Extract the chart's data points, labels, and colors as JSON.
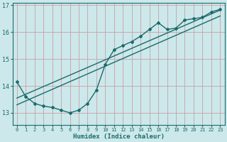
{
  "xlabel": "Humidex (Indice chaleur)",
  "ylabel": "",
  "bg_color": "#cce8ea",
  "grid_color": "#c8a0a8",
  "line_color": "#1a6b6b",
  "xlim": [
    -0.5,
    23.5
  ],
  "ylim": [
    12.55,
    17.1
  ],
  "yticks": [
    13,
    14,
    15,
    16,
    17
  ],
  "xticks": [
    0,
    1,
    2,
    3,
    4,
    5,
    6,
    7,
    8,
    9,
    10,
    11,
    12,
    13,
    14,
    15,
    16,
    17,
    18,
    19,
    20,
    21,
    22,
    23
  ],
  "data_x": [
    0,
    1,
    2,
    3,
    4,
    5,
    6,
    7,
    8,
    9,
    10,
    11,
    12,
    13,
    14,
    15,
    16,
    17,
    18,
    19,
    20,
    21,
    22,
    23
  ],
  "data_y": [
    14.15,
    13.6,
    13.35,
    13.25,
    13.2,
    13.1,
    13.0,
    13.1,
    13.35,
    13.85,
    14.8,
    15.35,
    15.5,
    15.65,
    15.85,
    16.1,
    16.35,
    16.1,
    16.15,
    16.45,
    16.5,
    16.55,
    16.75,
    16.85
  ],
  "trend1_x": [
    0,
    23
  ],
  "trend1_y": [
    13.55,
    16.82
  ],
  "trend2_x": [
    0,
    23
  ],
  "trend2_y": [
    13.3,
    16.6
  ]
}
